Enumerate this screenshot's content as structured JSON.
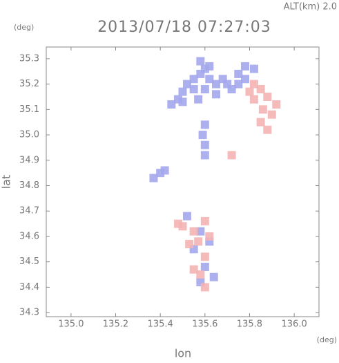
{
  "chart_data": {
    "type": "scatter",
    "title": "2013/07/18 07:27:03",
    "subtitle": "ALT(km) 2.0",
    "x_label": "lon",
    "y_label": "lat",
    "x_unit": "(deg)",
    "y_unit": "(deg)",
    "xlim": [
      134.889,
      136.111
    ],
    "ylim": [
      34.284,
      35.346
    ],
    "xticks": [
      {
        "value": 135.0,
        "label": "135.0"
      },
      135.2,
      135.4,
      135.6,
      135.8,
      {
        "value": 136.0,
        "label": "136.0"
      }
    ],
    "yticks": [
      34.3,
      34.4,
      34.5,
      34.6,
      34.7,
      34.8,
      34.9,
      {
        "value": 35.0,
        "label": "35.0"
      },
      35.1,
      35.2,
      35.3
    ],
    "series": [
      {
        "color": "#a4a7ec",
        "x": [
          135.45,
          135.48,
          135.5,
          135.52,
          135.55,
          135.58,
          135.6,
          135.62,
          135.65,
          135.68,
          135.7,
          135.72,
          135.75,
          135.78,
          135.75,
          135.55,
          135.6,
          135.65,
          135.5,
          135.57,
          135.62,
          135.58,
          135.78,
          135.82,
          135.6,
          135.6,
          135.59,
          135.6,
          135.37,
          135.4,
          135.42,
          135.52,
          135.58,
          135.62,
          135.55,
          135.6,
          135.64,
          135.58
        ],
        "y": [
          35.12,
          35.14,
          35.17,
          35.2,
          35.22,
          35.24,
          35.26,
          35.22,
          35.2,
          35.22,
          35.2,
          35.18,
          35.2,
          35.22,
          35.24,
          35.18,
          35.18,
          35.16,
          35.13,
          35.14,
          35.27,
          35.29,
          35.27,
          35.26,
          34.92,
          34.96,
          35.0,
          35.04,
          34.83,
          34.85,
          34.86,
          34.68,
          34.62,
          34.58,
          34.55,
          34.48,
          34.44,
          34.42
        ]
      },
      {
        "color": "#f4b4b4",
        "x": [
          135.82,
          135.85,
          135.88,
          135.82,
          135.86,
          135.9,
          135.85,
          135.88,
          135.92,
          135.8,
          135.5,
          135.55,
          135.6,
          135.62,
          135.57,
          135.53,
          135.6,
          135.55,
          135.58,
          135.6,
          135.48,
          135.72
        ],
        "y": [
          35.2,
          35.18,
          35.15,
          35.14,
          35.1,
          35.08,
          35.05,
          35.02,
          35.12,
          35.17,
          34.64,
          34.62,
          34.66,
          34.6,
          34.58,
          34.57,
          34.52,
          34.47,
          34.45,
          34.4,
          34.65,
          34.92
        ]
      }
    ]
  }
}
